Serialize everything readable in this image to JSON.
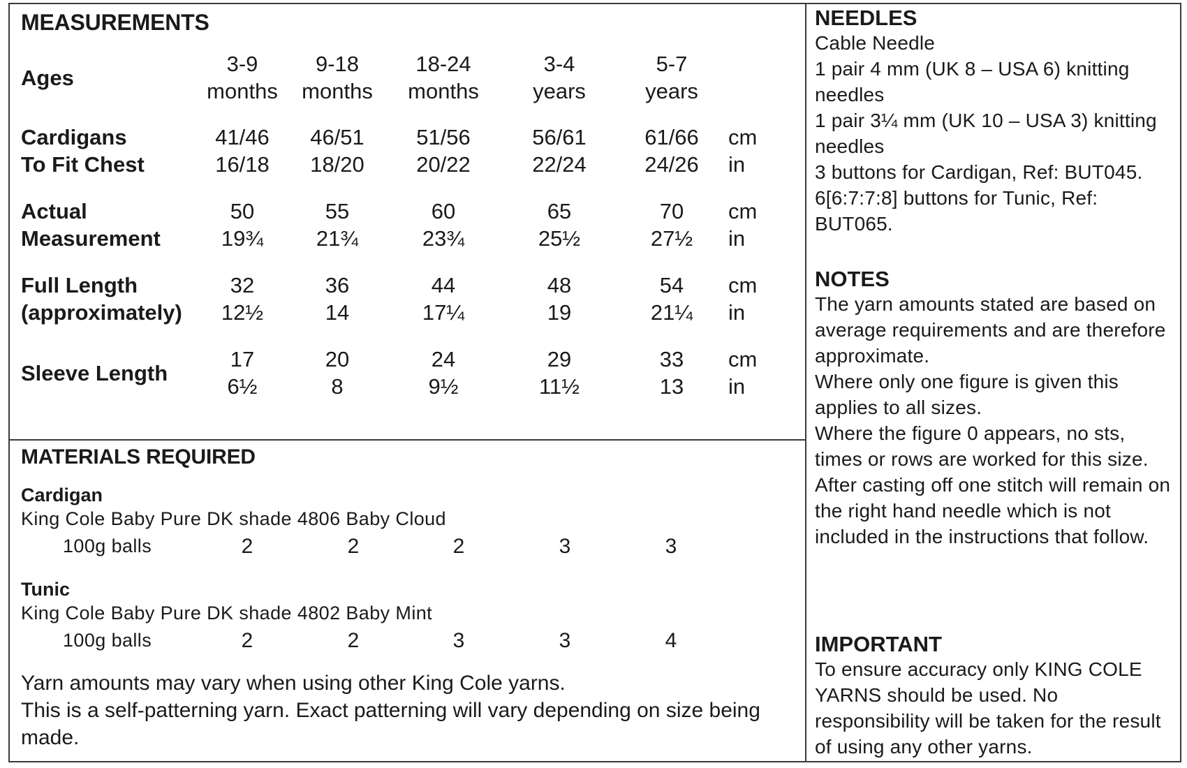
{
  "measurements": {
    "heading": "MEASUREMENTS",
    "ages": {
      "label": "Ages",
      "values": [
        [
          "3-9",
          "months"
        ],
        [
          "9-18",
          "months"
        ],
        [
          "18-24",
          "months"
        ],
        [
          "3-4",
          "years"
        ],
        [
          "5-7",
          "years"
        ]
      ]
    },
    "rows": [
      {
        "label": [
          "Cardigans",
          "To Fit Chest"
        ],
        "cm": [
          "41/46",
          "46/51",
          "51/56",
          "56/61",
          "61/66"
        ],
        "in": [
          "16/18",
          "18/20",
          "20/22",
          "22/24",
          "24/26"
        ]
      },
      {
        "label": [
          "Actual",
          "Measurement"
        ],
        "cm": [
          "50",
          "55",
          "60",
          "65",
          "70"
        ],
        "in": [
          "19¾",
          "21¾",
          "23¾",
          "25½",
          "27½"
        ]
      },
      {
        "label": [
          "Full Length",
          "(approximately)"
        ],
        "cm": [
          "32",
          "36",
          "44",
          "48",
          "54"
        ],
        "in": [
          "12½",
          "14",
          "17¼",
          "19",
          "21¼"
        ]
      },
      {
        "label": [
          "Sleeve Length"
        ],
        "cm": [
          "17",
          "20",
          "24",
          "29",
          "33"
        ],
        "in": [
          "6½",
          "8",
          "9½",
          "11½",
          "13"
        ]
      }
    ],
    "unit_cm": "cm",
    "unit_in": "in"
  },
  "materials": {
    "heading": "MATERIALS REQUIRED",
    "cardigan": {
      "label": "Cardigan",
      "desc": "King Cole Baby Pure DK shade 4806 Baby Cloud",
      "balls_label": "100g balls",
      "qty": [
        "2",
        "2",
        "2",
        "3",
        "3"
      ]
    },
    "tunic": {
      "label": "Tunic",
      "desc": "King Cole Baby Pure DK shade 4802 Baby Mint",
      "balls_label": "100g balls",
      "qty": [
        "2",
        "2",
        "3",
        "3",
        "4"
      ]
    },
    "footnote_1": "Yarn amounts may vary when using other King Cole yarns.",
    "footnote_2": "This is a self-patterning yarn. Exact patterning will vary depending on size being made."
  },
  "needles": {
    "heading": "NEEDLES",
    "lines": [
      "Cable Needle",
      "1 pair 4 mm (UK 8 – USA 6) knitting needles",
      "1 pair 3¼ mm (UK 10 – USA 3) knitting needles",
      "3 buttons for Cardigan, Ref: BUT045.",
      "6[6:7:7:8] buttons for Tunic, Ref: BUT065."
    ]
  },
  "notes": {
    "heading": "NOTES",
    "lines": [
      "The yarn amounts stated are based on average requirements and are therefore approximate.",
      "Where only one figure is given this applies to all sizes.",
      "Where the figure 0 appears, no sts, times or rows are worked for this size.",
      "After casting off one stitch will remain on the right hand needle which is not included in the instructions that follow."
    ]
  },
  "important": {
    "heading": "IMPORTANT",
    "text": "To ensure accuracy only KING COLE YARNS should be used. No responsibility will be taken for the result of using any other yarns."
  }
}
